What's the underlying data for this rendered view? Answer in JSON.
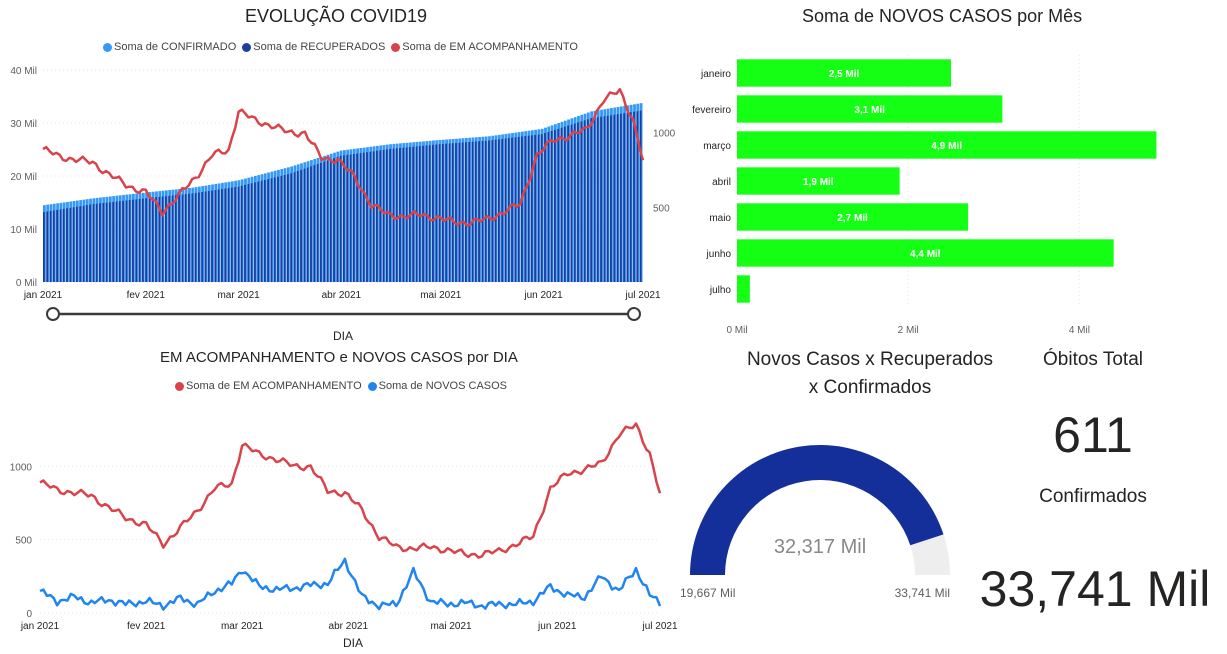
{
  "colors": {
    "confirmed": "#3599f7",
    "recovered": "#1b3fa0",
    "monitoring": "#d9434c",
    "new_cases": "#2185f0",
    "bar_green": "#14ff14",
    "gauge_fill": "#142f99",
    "gauge_track": "#eeeeee"
  },
  "top_left": {
    "title": "EVOLUÇÃO COVID19",
    "legend": [
      "Soma de CONFIRMADO",
      "Soma de RECUPERADOS",
      "Soma de EM ACOMPANHAMENTO"
    ],
    "xaxis_title": "DIA"
  },
  "bottom_left": {
    "title": "EM ACOMPANHAMENTO e NOVOS CASOS por DIA",
    "legend": [
      "Soma de EM ACOMPANHAMENTO",
      "Soma de NOVOS CASOS"
    ],
    "xaxis_title": "DIA"
  },
  "top_right": {
    "title": "Soma de NOVOS CASOS por Mês"
  },
  "gauge": {
    "title_line1": "Novos Casos x Recuperados",
    "title_line2": "x Confirmados",
    "value_label": "32,317 Mil",
    "min_label": "19,667 Mil",
    "max_label": "33,741 Mil",
    "value": 32317,
    "min": 19667,
    "max": 33741
  },
  "kpis": {
    "obitos_label": "Óbitos Total",
    "obitos_value": "611",
    "confirmados_label": "Confirmados",
    "confirmados_value": "33,741 Mil"
  },
  "chart_data": [
    {
      "type": "bar",
      "title": "EVOLUÇÃO COVID19",
      "xlabel": "DIA",
      "x_ticks": [
        "jan 2021",
        "fev 2021",
        "mar 2021",
        "abr 2021",
        "mai 2021",
        "jun 2021",
        "jul 2021"
      ],
      "y_ticks": [
        "0 Mil",
        "10 Mil",
        "20 Mil",
        "30 Mil",
        "40 Mil"
      ],
      "ylim": [
        0,
        40000
      ],
      "y2_ticks": [
        "500",
        "1000"
      ],
      "series": [
        {
          "name": "Soma de CONFIRMADO",
          "type": "bar",
          "x": [
            0,
            15,
            31,
            45,
            59,
            75,
            90,
            105,
            120,
            135,
            151,
            166,
            181
          ],
          "y": [
            14500,
            15800,
            16900,
            17800,
            19200,
            21800,
            24800,
            26000,
            26800,
            27500,
            28900,
            32200,
            33741
          ]
        },
        {
          "name": "Soma de RECUPERADOS",
          "type": "bar",
          "x": [
            0,
            15,
            31,
            45,
            59,
            75,
            90,
            105,
            120,
            135,
            151,
            166,
            181
          ],
          "y": [
            13200,
            14700,
            15800,
            16700,
            18000,
            20500,
            23800,
            25100,
            26000,
            26700,
            27900,
            30900,
            32317
          ]
        },
        {
          "name": "Soma de EM ACOMPANHAMENTO",
          "type": "line",
          "axis": "secondary",
          "x": [
            0,
            5,
            10,
            15,
            20,
            25,
            31,
            36,
            41,
            46,
            51,
            56,
            59,
            64,
            69,
            74,
            79,
            84,
            89,
            94,
            99,
            104,
            109,
            114,
            119,
            124,
            129,
            134,
            139,
            144,
            149,
            154,
            159,
            164,
            169,
            174,
            178,
            181
          ],
          "y": [
            890,
            840,
            820,
            800,
            720,
            650,
            600,
            470,
            580,
            700,
            850,
            880,
            1150,
            1080,
            1050,
            1000,
            1000,
            830,
            820,
            700,
            520,
            450,
            440,
            450,
            430,
            400,
            400,
            420,
            470,
            520,
            850,
            950,
            980,
            1020,
            1220,
            1280,
            1090,
            810
          ]
        }
      ]
    },
    {
      "type": "line",
      "title": "EM ACOMPANHAMENTO e NOVOS CASOS por DIA",
      "xlabel": "DIA",
      "x_ticks": [
        "jan 2021",
        "fev 2021",
        "mar 2021",
        "abr 2021",
        "mai 2021",
        "jun 2021",
        "jul 2021"
      ],
      "y_ticks": [
        "0",
        "500",
        "1000"
      ],
      "ylim": [
        0,
        1350
      ],
      "series": [
        {
          "name": "Soma de EM ACOMPANHAMENTO",
          "x": [
            0,
            5,
            10,
            15,
            20,
            25,
            31,
            36,
            41,
            46,
            51,
            56,
            59,
            64,
            69,
            74,
            79,
            84,
            89,
            94,
            99,
            104,
            109,
            114,
            119,
            124,
            129,
            134,
            139,
            144,
            149,
            154,
            159,
            164,
            169,
            174,
            178,
            181
          ],
          "y": [
            890,
            840,
            820,
            800,
            720,
            650,
            600,
            470,
            580,
            700,
            850,
            880,
            1150,
            1080,
            1050,
            1000,
            1000,
            830,
            820,
            700,
            520,
            450,
            440,
            450,
            430,
            400,
            400,
            420,
            470,
            520,
            850,
            950,
            980,
            1020,
            1220,
            1280,
            1090,
            810
          ]
        },
        {
          "name": "Soma de NOVOS CASOS",
          "x": [
            0,
            5,
            10,
            15,
            20,
            25,
            31,
            36,
            41,
            46,
            51,
            56,
            59,
            64,
            69,
            74,
            79,
            84,
            89,
            94,
            99,
            104,
            109,
            114,
            119,
            124,
            129,
            134,
            139,
            144,
            149,
            154,
            159,
            164,
            169,
            174,
            178,
            181
          ],
          "y": [
            150,
            80,
            110,
            70,
            90,
            60,
            80,
            50,
            100,
            60,
            150,
            200,
            300,
            180,
            160,
            170,
            190,
            200,
            360,
            110,
            50,
            60,
            280,
            80,
            60,
            70,
            50,
            60,
            60,
            80,
            180,
            120,
            110,
            250,
            150,
            300,
            120,
            70
          ]
        }
      ]
    },
    {
      "type": "bar",
      "orientation": "horizontal",
      "title": "Soma de NOVOS CASOS por Mês",
      "categories": [
        "janeiro",
        "fevereiro",
        "março",
        "abril",
        "maio",
        "junho",
        "julho"
      ],
      "values": [
        2500,
        3100,
        4900,
        1900,
        2700,
        4400,
        150
      ],
      "data_labels": [
        "2,5 Mil",
        "3,1 Mil",
        "4,9 Mil",
        "1,9 Mil",
        "2,7 Mil",
        "4,4 Mil",
        ""
      ],
      "x_ticks": [
        "0 Mil",
        "2 Mil",
        "4 Mil"
      ],
      "xlim": [
        0,
        5000
      ]
    }
  ]
}
